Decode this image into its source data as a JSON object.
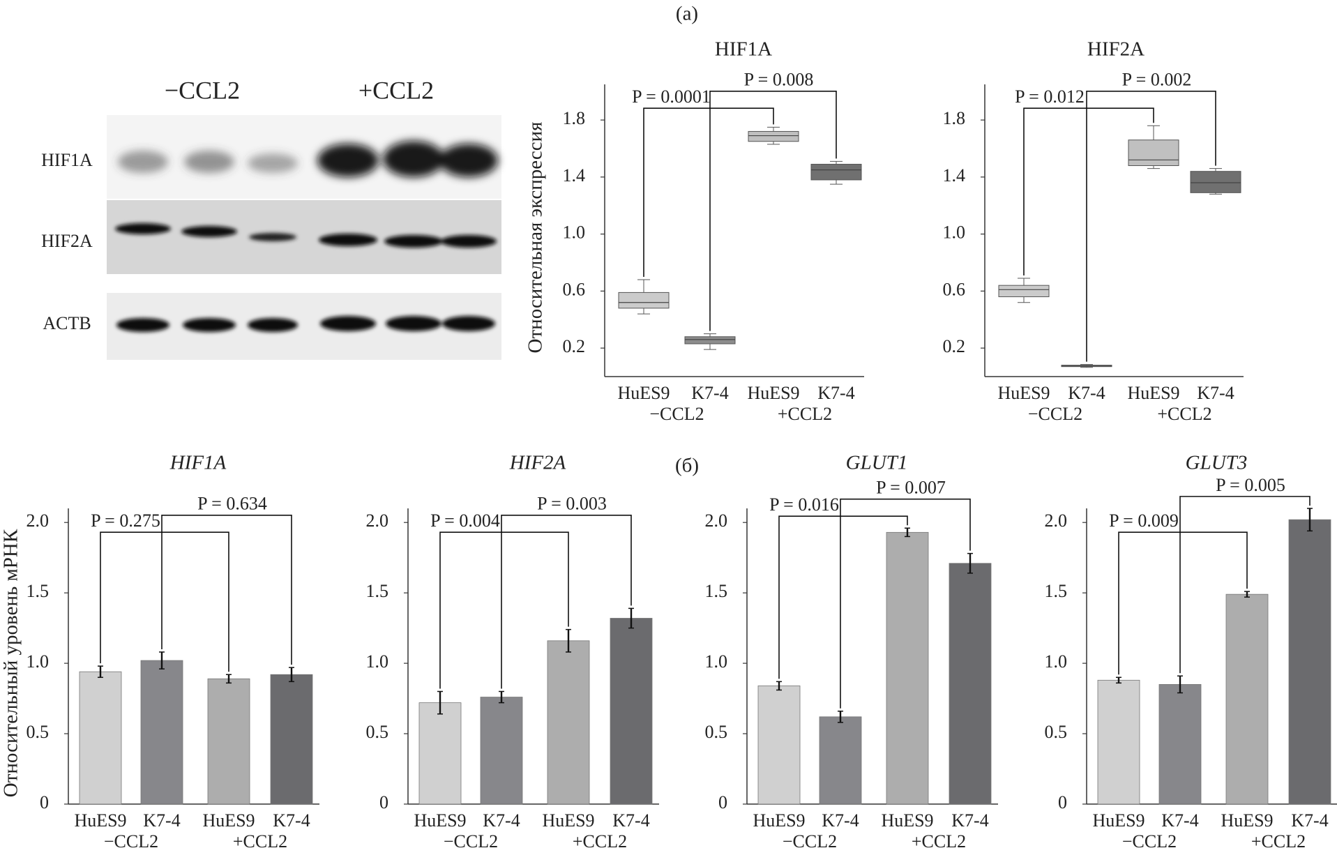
{
  "panel_labels": [
    "(a)",
    "(б)"
  ],
  "blot": {
    "groups": [
      "−CCL2",
      "+CCL2"
    ],
    "rows": [
      "HIF1A",
      "HIF2A",
      "ACTB"
    ]
  },
  "chart_data": [
    {
      "type": "box",
      "title": "HIF1A",
      "y_label": "Относительная экспрессия",
      "categories": [
        "HuES9",
        "K7-4",
        "HuES9",
        "K7-4"
      ],
      "groups": [
        "−CCL2",
        "+CCL2"
      ],
      "ylim": [
        0,
        2.05
      ],
      "yticks": [
        0.2,
        0.6,
        {
          "value": 1,
          "label": "1.0"
        },
        1.4,
        1.8
      ],
      "colors": [
        "#cbcbcb",
        "#8c8c8c",
        "#c0c0c0",
        "#707070"
      ],
      "boxes": [
        {
          "whisker_low": 0.44,
          "q1": 0.48,
          "median": 0.52,
          "q3": 0.59,
          "whisker_high": 0.68
        },
        {
          "whisker_low": 0.19,
          "q1": 0.23,
          "median": 0.26,
          "q3": 0.28,
          "whisker_high": 0.3
        },
        {
          "whisker_low": 1.63,
          "q1": 1.65,
          "median": 1.69,
          "q3": 1.72,
          "whisker_high": 1.75
        },
        {
          "whisker_low": 1.35,
          "q1": 1.38,
          "median": 1.45,
          "q3": 1.49,
          "whisker_high": 1.51
        }
      ],
      "annotations": [
        "P = 0.0001",
        "P = 0.008"
      ]
    },
    {
      "type": "box",
      "title": "HIF2A",
      "categories": [
        "HuES9",
        "K7-4",
        "HuES9",
        "K7-4"
      ],
      "groups": [
        "−CCL2",
        "+CCL2"
      ],
      "ylim": [
        0,
        2.05
      ],
      "yticks": [
        0.2,
        0.6,
        {
          "value": 1,
          "label": "1.0"
        },
        1.4,
        1.8
      ],
      "colors": [
        "#cbcbcb",
        "#8c8c8c",
        "#c0c0c0",
        "#707070"
      ],
      "boxes": [
        {
          "whisker_low": 0.52,
          "q1": 0.56,
          "median": 0.61,
          "q3": 0.64,
          "whisker_high": 0.69
        },
        {
          "whisker_low": 0.065,
          "q1": 0.07,
          "median": 0.075,
          "q3": 0.08,
          "whisker_high": 0.085
        },
        {
          "whisker_low": 1.46,
          "q1": 1.48,
          "median": 1.52,
          "q3": 1.66,
          "whisker_high": 1.76
        },
        {
          "whisker_low": 1.28,
          "q1": 1.29,
          "median": 1.36,
          "q3": 1.44,
          "whisker_high": 1.46
        }
      ],
      "annotations": [
        "P = 0.012",
        "P = 0.002"
      ]
    },
    {
      "type": "bar",
      "title": "HIF1A",
      "y_label": "Относительный уровень мРНК",
      "categories": [
        "HuES9",
        "K7-4",
        "HuES9",
        "K7-4"
      ],
      "groups": [
        "−CCL2",
        "+CCL2"
      ],
      "ylim": [
        0,
        2.1
      ],
      "yticks": [
        0,
        0.5,
        {
          "value": 1,
          "label": "1.0"
        },
        1.5,
        {
          "value": 2,
          "label": "2.0"
        }
      ],
      "colors": [
        "#d0d0d0",
        "#87878b",
        "#adadad",
        "#6b6b6e"
      ],
      "values": [
        0.94,
        1.02,
        0.89,
        0.92
      ],
      "errors": [
        0.04,
        0.06,
        0.03,
        0.05
      ],
      "annotations": [
        "P = 0.275",
        "P = 0.634"
      ]
    },
    {
      "type": "bar",
      "title": "HIF2A",
      "categories": [
        "HuES9",
        "K7-4",
        "HuES9",
        "K7-4"
      ],
      "groups": [
        "−CCL2",
        "+CCL2"
      ],
      "ylim": [
        0,
        2.1
      ],
      "yticks": [
        0,
        0.5,
        {
          "value": 1,
          "label": "1.0"
        },
        1.5,
        {
          "value": 2,
          "label": "2.0"
        }
      ],
      "colors": [
        "#d0d0d0",
        "#87878b",
        "#adadad",
        "#6b6b6e"
      ],
      "values": [
        0.72,
        0.76,
        1.16,
        1.32
      ],
      "errors": [
        0.08,
        0.04,
        0.08,
        0.07
      ],
      "annotations": [
        "P = 0.004",
        "P = 0.003"
      ]
    },
    {
      "type": "bar",
      "title": "GLUT1",
      "categories": [
        "HuES9",
        "K7-4",
        "HuES9",
        "K7-4"
      ],
      "groups": [
        "−CCL2",
        "+CCL2"
      ],
      "ylim": [
        0,
        2.1
      ],
      "yticks": [
        0,
        0.5,
        {
          "value": 1,
          "label": "1.0"
        },
        1.5,
        {
          "value": 2,
          "label": "2.0"
        }
      ],
      "colors": [
        "#d0d0d0",
        "#87878b",
        "#adadad",
        "#6b6b6e"
      ],
      "values": [
        0.84,
        0.62,
        1.93,
        1.71
      ],
      "errors": [
        0.03,
        0.04,
        0.03,
        0.07
      ],
      "annotations": [
        "P = 0.016",
        "P = 0.007"
      ]
    },
    {
      "type": "bar",
      "title": "GLUT3",
      "categories": [
        "HuES9",
        "K7-4",
        "HuES9",
        "K7-4"
      ],
      "groups": [
        "−CCL2",
        "+CCL2"
      ],
      "ylim": [
        0,
        2.1
      ],
      "yticks": [
        0,
        0.5,
        {
          "value": 1,
          "label": "1.0"
        },
        1.5,
        {
          "value": 2,
          "label": "2.0"
        }
      ],
      "colors": [
        "#d0d0d0",
        "#87878b",
        "#adadad",
        "#6b6b6e"
      ],
      "values": [
        0.88,
        0.85,
        1.49,
        2.02
      ],
      "errors": [
        0.02,
        0.06,
        0.02,
        0.08
      ],
      "annotations": [
        "P = 0.009",
        "P = 0.005"
      ]
    }
  ]
}
